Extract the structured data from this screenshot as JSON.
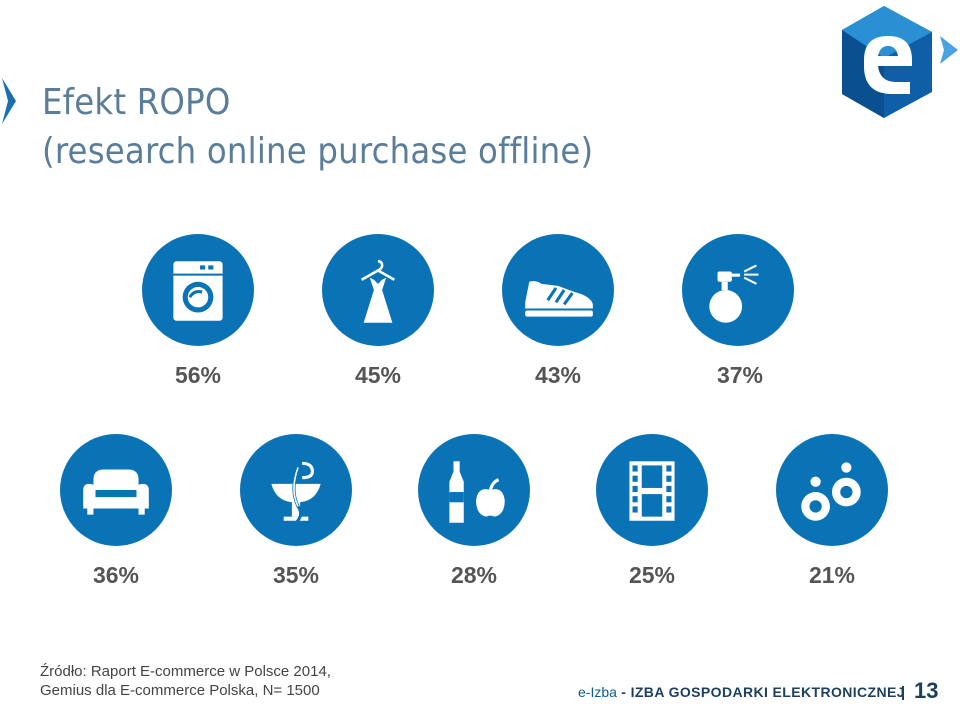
{
  "title": {
    "line1": "Efekt ROPO",
    "line2": "(research online purchase offline)"
  },
  "colors": {
    "accent": "#0a73b6",
    "title": "#5b7d99",
    "text": "#555555"
  },
  "row1": [
    {
      "icon": "washing-machine-icon",
      "value": "56%"
    },
    {
      "icon": "dress-icon",
      "value": "45%"
    },
    {
      "icon": "sneaker-icon",
      "value": "43%"
    },
    {
      "icon": "perfume-icon",
      "value": "37%"
    }
  ],
  "row2": [
    {
      "icon": "sofa-icon",
      "value": "36%"
    },
    {
      "icon": "pharmacy-icon",
      "value": "35%"
    },
    {
      "icon": "groceries-icon",
      "value": "28%"
    },
    {
      "icon": "film-icon",
      "value": "25%"
    },
    {
      "icon": "earrings-icon",
      "value": "21%"
    }
  ],
  "source": {
    "line1": "Źródło: Raport E-commerce w Polsce 2014,",
    "line2": "Gemius dla E-commerce Polska, N= 1500"
  },
  "footer": {
    "brand_short": "e-Izba",
    "brand_full": " - IZBA GOSPODARKI ELEKTRONICZNEJ",
    "page_number": "13"
  }
}
